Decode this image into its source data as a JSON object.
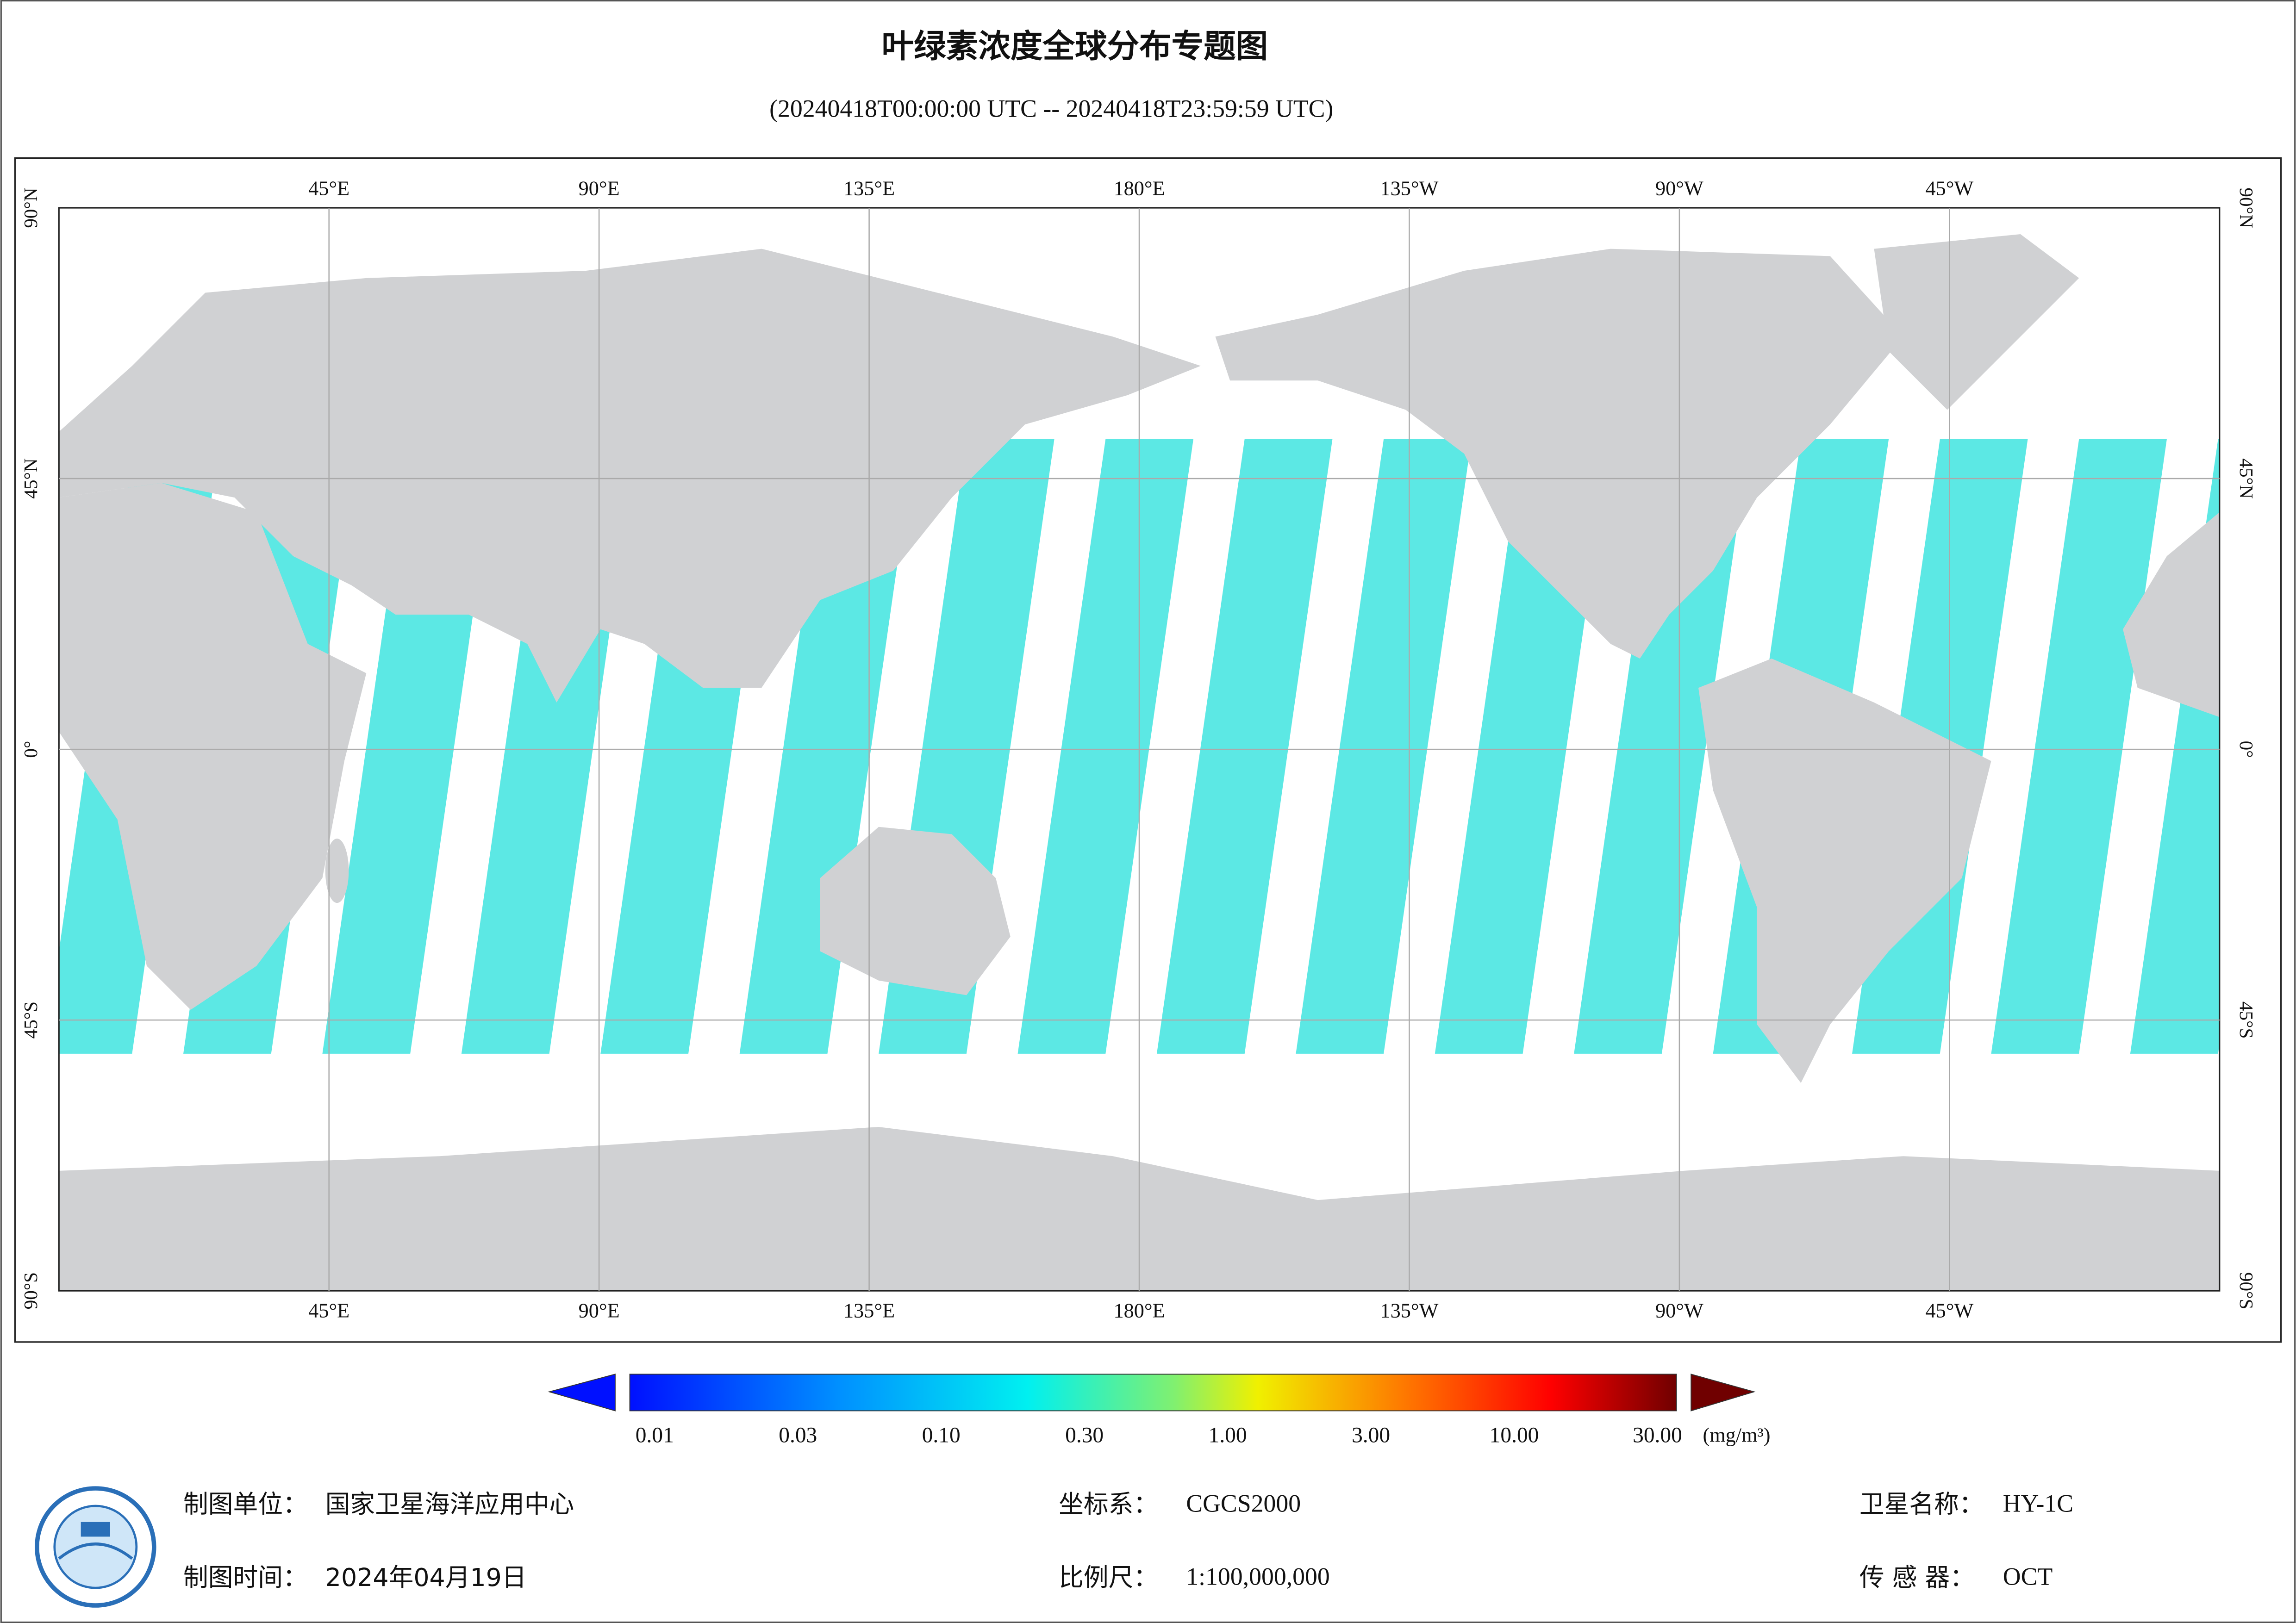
{
  "header": {
    "title": "叶绿素浓度全球分布专题图",
    "subtitle": "(20240418T00:00:00 UTC -- 20240418T23:59:59 UTC)"
  },
  "map": {
    "lon_labels": [
      "45°E",
      "90°E",
      "135°E",
      "180°E",
      "135°W",
      "90°W",
      "45°W"
    ],
    "lat_labels": [
      "90°N",
      "45°N",
      "0°",
      "45°S",
      "90°S"
    ]
  },
  "colorbar": {
    "ticks": [
      "0.01",
      "0.03",
      "0.10",
      "0.30",
      "1.00",
      "3.00",
      "10.00",
      "30.00"
    ],
    "unit": "(mg/m³)"
  },
  "footer": {
    "unit_label": "制图单位：",
    "unit": "国家卫星海洋应用中心",
    "date_label": "制图时间：",
    "date": "2024年04月19日",
    "crs_label": "坐标系：",
    "crs": "CGCS2000",
    "scale_label": "比例尺：",
    "scale": "1:100,000,000",
    "satellite_label": "卫星名称：",
    "satellite": "HY-1C",
    "sensor_label": "传 感 器：",
    "sensor": "OCT"
  }
}
